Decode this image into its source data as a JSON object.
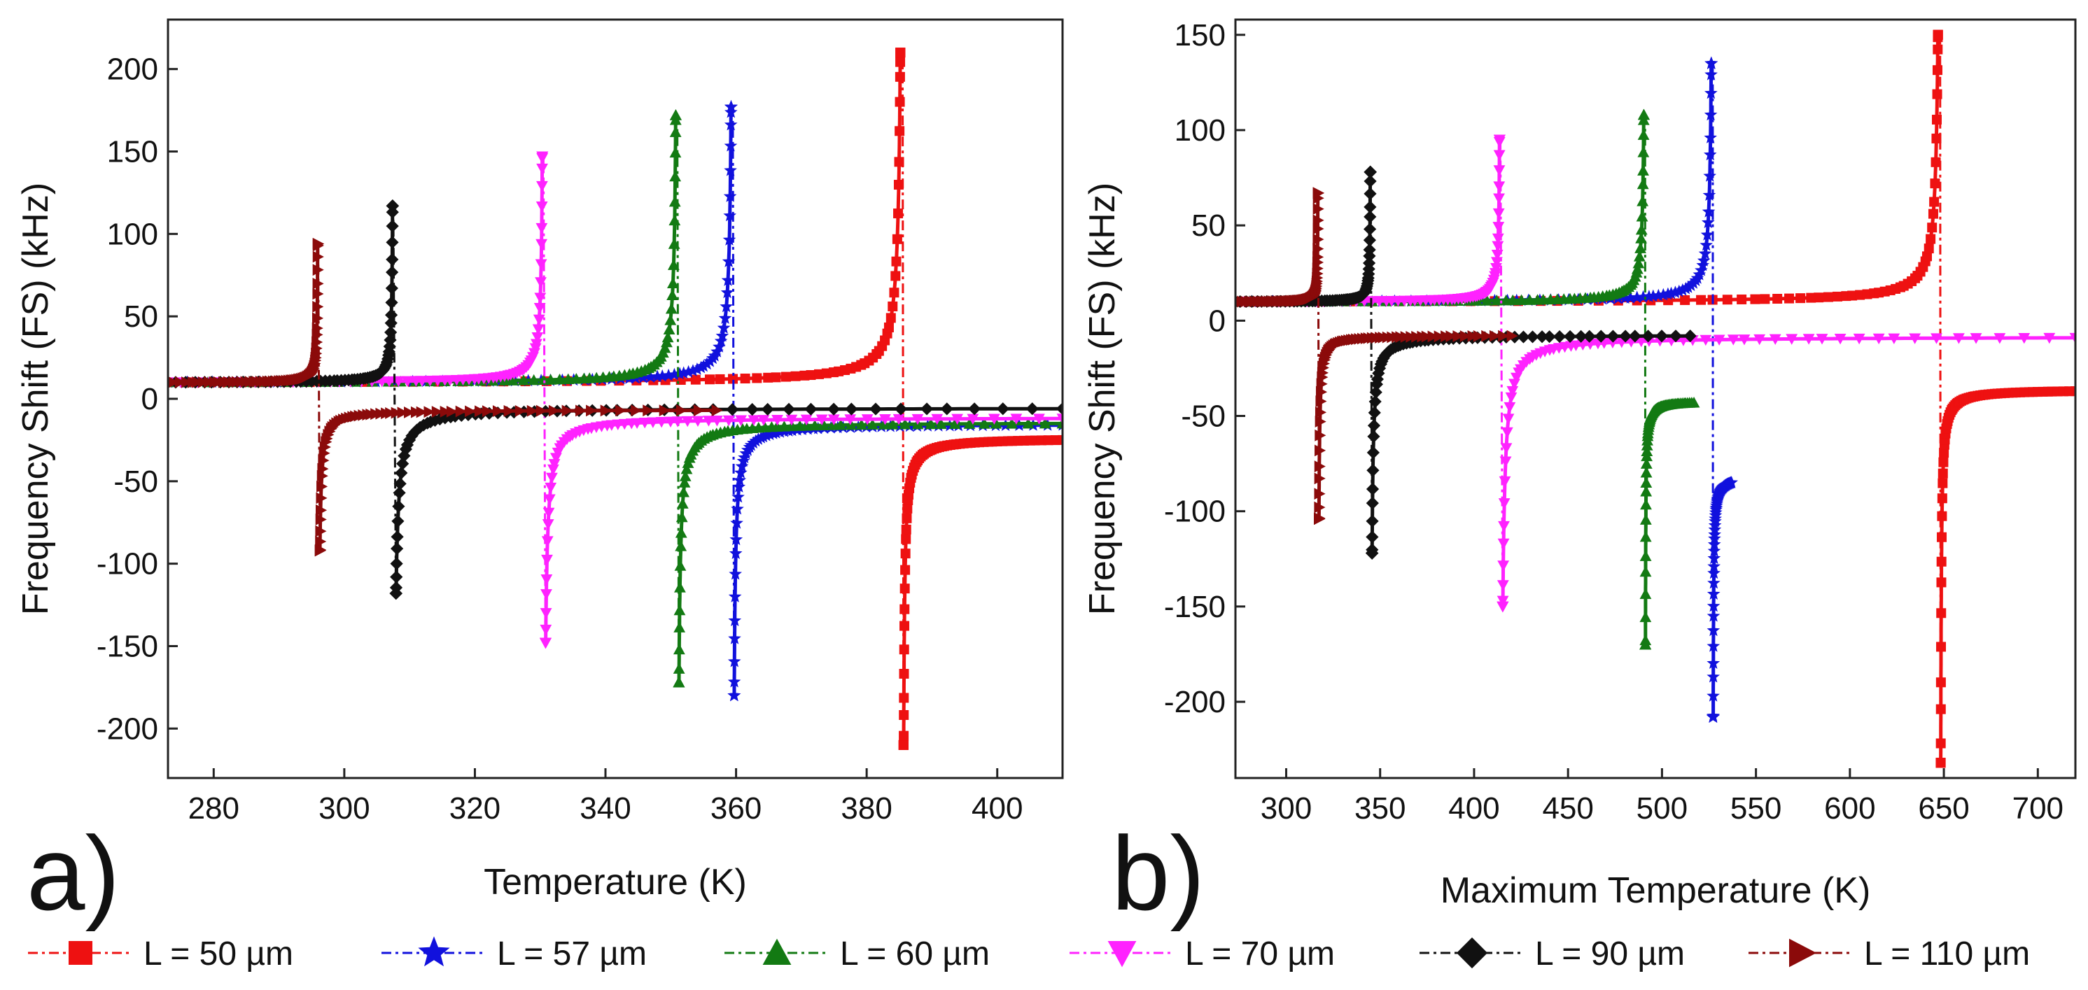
{
  "panels": [
    {
      "id": "a",
      "panel_label": "a)",
      "xlabel": "Temperature (K)",
      "ylabel": "Frequency Shift (FS) (kHz)",
      "x_ticks": [
        280,
        300,
        320,
        340,
        360,
        380,
        400
      ],
      "y_ticks": [
        200,
        150,
        100,
        50,
        0,
        -50,
        -100,
        -150,
        -200
      ]
    },
    {
      "id": "b",
      "panel_label": "b)",
      "xlabel": "Maximum Temperature (K)",
      "ylabel": "Frequency Shift (FS) (kHz)",
      "x_ticks": [
        300,
        350,
        400,
        450,
        500,
        550,
        600,
        650,
        700
      ],
      "y_ticks": [
        150,
        100,
        50,
        0,
        -50,
        -100,
        -150,
        -200
      ]
    }
  ],
  "legend": [
    {
      "label": "L = 50 µm",
      "color": "#ee1111",
      "marker": "square"
    },
    {
      "label": "L = 57 µm",
      "color": "#1111dd",
      "marker": "star"
    },
    {
      "label": "L = 60 µm",
      "color": "#137a13",
      "marker": "triangle-up"
    },
    {
      "label": "L = 70 µm",
      "color": "#ff22ff",
      "marker": "triangle-down"
    },
    {
      "label": "L = 90 µm",
      "color": "#111111",
      "marker": "diamond"
    },
    {
      "label": "L = 110 µm",
      "color": "#8b0a0a",
      "marker": "triangle-right"
    }
  ],
  "chart_data": [
    {
      "type": "line",
      "panel": "a",
      "title": "",
      "xlabel": "Temperature (K)",
      "ylabel": "Frequency Shift (FS) (kHz)",
      "xlim": [
        273,
        410
      ],
      "ylim": [
        -230,
        230
      ],
      "grid": false,
      "series": [
        {
          "name": "L = 50 µm",
          "color": "#ee1111",
          "marker": "square",
          "x0": 273,
          "xpole": 385.5,
          "peak": 210,
          "trough": -210,
          "xend": 410,
          "end_low": -25,
          "start": 10
        },
        {
          "name": "L = 57 µm",
          "color": "#1111dd",
          "marker": "star",
          "x0": 273,
          "xpole": 359.5,
          "peak": 177,
          "trough": -180,
          "xend": 410,
          "end_low": -16,
          "start": 10
        },
        {
          "name": "L = 60 µm",
          "color": "#137a13",
          "marker": "triangle-up",
          "x0": 273,
          "xpole": 351,
          "peak": 172,
          "trough": -172,
          "xend": 410,
          "end_low": -15,
          "start": 10
        },
        {
          "name": "L = 70 µm",
          "color": "#ff22ff",
          "marker": "triangle-down",
          "x0": 273,
          "xpole": 330.5,
          "peak": 147,
          "trough": -148,
          "xend": 410,
          "end_low": -12,
          "start": 10
        },
        {
          "name": "L = 90 µm",
          "color": "#111111",
          "marker": "diamond",
          "x0": 273,
          "xpole": 307.5,
          "peak": 117,
          "trough": -118,
          "xend": 410,
          "end_low": -6,
          "start": 10
        },
        {
          "name": "L = 110 µm",
          "color": "#8b0a0a",
          "marker": "triangle-right",
          "x0": 273,
          "xpole": 296,
          "peak": 94,
          "trough": -92,
          "xend": 357,
          "end_low": -7,
          "start": 10
        }
      ]
    },
    {
      "type": "line",
      "panel": "b",
      "title": "",
      "xlabel": "Maximum Temperature (K)",
      "ylabel": "Frequency Shift (FS) (kHz)",
      "xlim": [
        273,
        720
      ],
      "ylim": [
        -240,
        158
      ],
      "grid": false,
      "series": [
        {
          "name": "L = 50 µm",
          "color": "#ee1111",
          "marker": "square",
          "x0": 273,
          "xpole": 648,
          "peak": 150,
          "trough": -232,
          "xend": 720,
          "end_low": -37,
          "start": 10
        },
        {
          "name": "L = 57 µm",
          "color": "#1111dd",
          "marker": "star",
          "x0": 273,
          "xpole": 527,
          "peak": 135,
          "trough": -208,
          "xend": 537,
          "end_low": -85,
          "start": 10
        },
        {
          "name": "L = 60 µm",
          "color": "#137a13",
          "marker": "triangle-up",
          "x0": 273,
          "xpole": 491,
          "peak": 108,
          "trough": -170,
          "xend": 517,
          "end_low": -43,
          "start": 10
        },
        {
          "name": "L = 70 µm",
          "color": "#ff22ff",
          "marker": "triangle-down",
          "x0": 273,
          "xpole": 414,
          "peak": 95,
          "trough": -150,
          "xend": 720,
          "end_low": -9,
          "start": 10
        },
        {
          "name": "L = 90 µm",
          "color": "#111111",
          "marker": "diamond",
          "x0": 273,
          "xpole": 345,
          "peak": 78,
          "trough": -122,
          "xend": 515,
          "end_low": -8,
          "start": 10
        },
        {
          "name": "L = 110 µm",
          "color": "#8b0a0a",
          "marker": "triangle-right",
          "x0": 273,
          "xpole": 317,
          "peak": 67,
          "trough": -104,
          "xend": 420,
          "end_low": -8,
          "start": 10
        }
      ]
    }
  ]
}
